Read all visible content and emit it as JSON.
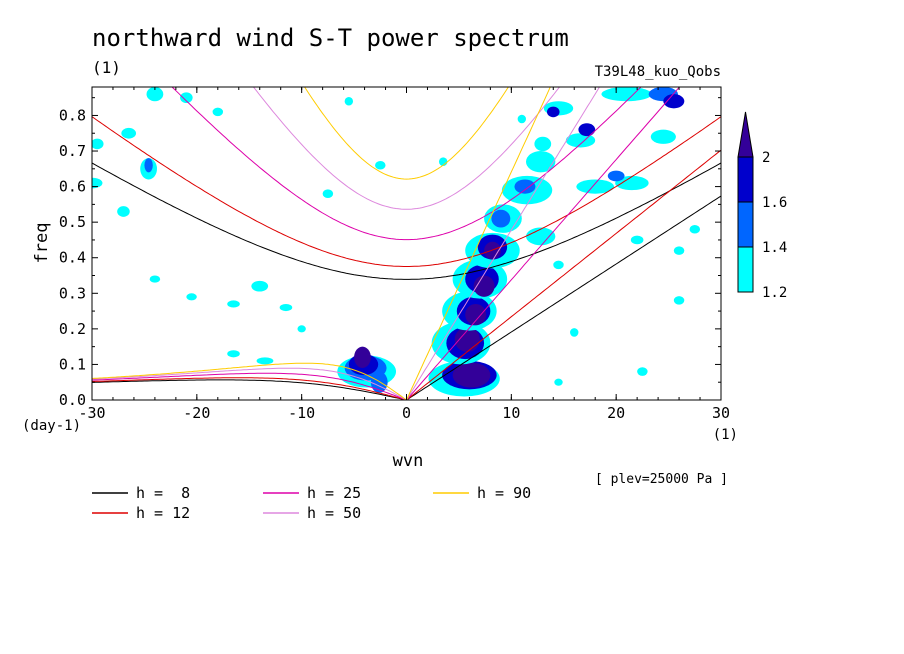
{
  "chart_data": {
    "type": "contour",
    "title": "northward wind S-T power spectrum",
    "subtitle_left": "(1)",
    "subtitle_right": "T39L48_kuo_Qobs",
    "xlabel": "wvn",
    "ylabel": "freq",
    "x_unit_label": "(1)",
    "y_unit_label": "(day-1)",
    "xlim": [
      -30,
      30
    ],
    "ylim": [
      0,
      0.88
    ],
    "x_ticks": [
      -30,
      -20,
      -10,
      0,
      10,
      20,
      30
    ],
    "x_tick_labels": [
      "-30",
      "-20",
      "-10",
      "0",
      "10",
      "20",
      "30"
    ],
    "y_ticks": [
      0.0,
      0.1,
      0.2,
      0.3,
      0.4,
      0.5,
      0.6,
      0.7,
      0.8
    ],
    "y_tick_labels": [
      "0.0",
      "0.1",
      "0.2",
      "0.3",
      "0.4",
      "0.5",
      "0.6",
      "0.7",
      "0.8"
    ],
    "annotation": "[ plev=25000 Pa ]",
    "colorbar": {
      "levels": [
        1.2,
        1.4,
        1.6,
        2
      ],
      "level_labels": [
        "1.2",
        "1.4",
        "1.6",
        "2"
      ],
      "colors": [
        "#00ffff",
        "#0066ff",
        "#0000cc",
        "#330099"
      ]
    },
    "dispersion_curves": [
      {
        "label": "h =  8",
        "color": "#000000"
      },
      {
        "label": "h = 12",
        "color": "#dd0000"
      },
      {
        "label": "h = 25",
        "color": "#dd00aa"
      },
      {
        "label": "h = 50",
        "color": "#dd88dd"
      },
      {
        "label": "h = 90",
        "color": "#ffcc00"
      }
    ],
    "equivalent_depths_m": [
      8,
      12,
      25,
      50,
      90
    ],
    "spectral_peaks": [
      {
        "x": 6,
        "y": 0.07,
        "level": 2
      },
      {
        "x": 7,
        "y": 0.3,
        "level": 2
      },
      {
        "x": 8,
        "y": 0.42,
        "level": 2
      },
      {
        "x": -4,
        "y": 0.08,
        "level": 2
      },
      {
        "x": -4.5,
        "y": 0.12,
        "level": 1.6
      }
    ]
  }
}
